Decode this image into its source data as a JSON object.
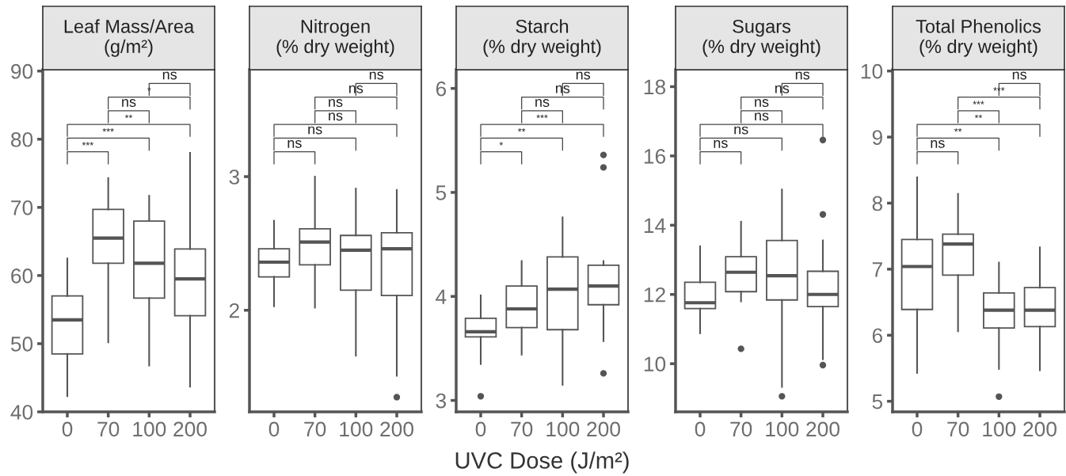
{
  "chart_data": [
    {
      "type": "box",
      "title": "Leaf Mass/Area\n(g/m²)",
      "categories": [
        "0",
        "70",
        "100",
        "200"
      ],
      "ylim": [
        40,
        90.2
      ],
      "yticks": [
        40,
        50,
        60,
        70,
        80,
        90
      ],
      "boxes": [
        {
          "low": 42.3,
          "q1": 48.5,
          "median": 53.5,
          "q3": 57,
          "high": 62.5
        },
        {
          "low": 50.2,
          "q1": 61.8,
          "median": 65.5,
          "q3": 69.7,
          "high": 74.3
        },
        {
          "low": 46.8,
          "q1": 56.7,
          "median": 61.8,
          "q3": 68,
          "high": 71.7
        },
        {
          "low": 43.7,
          "q1": 54.1,
          "median": 59.5,
          "q3": 63.9,
          "high": 78
        }
      ],
      "annotations": [
        "***",
        "***",
        "**",
        "ns",
        "*",
        "ns"
      ]
    },
    {
      "type": "box",
      "title": "Nitrogen\n(% dry weight)",
      "categories": [
        "0",
        "70",
        "100",
        "200"
      ],
      "ylim": [
        1.24,
        3.8
      ],
      "yticks": [
        2,
        3
      ],
      "boxes": [
        {
          "low": 2.03,
          "q1": 2.25,
          "median": 2.36,
          "q3": 2.46,
          "high": 2.67
        },
        {
          "low": 2.02,
          "q1": 2.34,
          "median": 2.51,
          "q3": 2.61,
          "high": 3.0
        },
        {
          "low": 1.66,
          "q1": 2.15,
          "median": 2.45,
          "q3": 2.56,
          "high": 2.91
        },
        {
          "low": 1.51,
          "q1": 2.11,
          "median": 2.46,
          "q3": 2.58,
          "high": 2.9,
          "outliers": [
            1.35
          ]
        }
      ],
      "annotations": [
        "ns",
        "ns",
        "ns",
        "ns",
        "ns",
        "ns"
      ]
    },
    {
      "type": "box",
      "title": "Starch\n(% dry weight)",
      "xlabel": "UVC Dose (J/m²)",
      "categories": [
        "0",
        "70",
        "100",
        "200"
      ],
      "ylim": [
        2.89,
        6.18
      ],
      "yticks": [
        3,
        4,
        5,
        6
      ],
      "boxes": [
        {
          "low": 3.35,
          "q1": 3.61,
          "median": 3.66,
          "q3": 3.79,
          "high": 4.01,
          "outliers": [
            3.04
          ]
        },
        {
          "low": 3.44,
          "q1": 3.7,
          "median": 3.88,
          "q3": 4.1,
          "high": 4.34
        },
        {
          "low": 3.15,
          "q1": 3.68,
          "median": 4.07,
          "q3": 4.38,
          "high": 4.76
        },
        {
          "low": 3.57,
          "q1": 3.92,
          "median": 4.1,
          "q3": 4.3,
          "high": 4.34,
          "outliers": [
            5.36,
            5.24,
            3.26
          ]
        }
      ],
      "annotations": [
        "*",
        "**",
        "***",
        "ns",
        "ns",
        "ns"
      ]
    },
    {
      "type": "box",
      "title": "Sugars\n(% dry weight)",
      "categories": [
        "0",
        "70",
        "100",
        "200"
      ],
      "ylim": [
        8.61,
        18.49
      ],
      "yticks": [
        10,
        12,
        14,
        16,
        18
      ],
      "boxes": [
        {
          "low": 10.88,
          "q1": 11.59,
          "median": 11.76,
          "q3": 12.35,
          "high": 13.39
        },
        {
          "low": 11.8,
          "q1": 12.08,
          "median": 12.64,
          "q3": 13.09,
          "high": 14.1,
          "outliers": [
            10.43
          ]
        },
        {
          "low": 9.33,
          "q1": 11.84,
          "median": 12.54,
          "q3": 13.56,
          "high": 15.03,
          "outliers": [
            9.06
          ]
        },
        {
          "low": 10.13,
          "q1": 11.65,
          "median": 12.0,
          "q3": 12.67,
          "high": 13.56,
          "outliers": [
            16.46,
            14.31,
            9.96
          ]
        }
      ],
      "annotations": [
        "ns",
        "ns",
        "ns",
        "ns",
        "ns",
        "ns"
      ]
    },
    {
      "type": "box",
      "title": "Total Phenolics\n(% dry weight)",
      "categories": [
        "0",
        "70",
        "100",
        "200"
      ],
      "ylim": [
        4.84,
        10.02
      ],
      "yticks": [
        5,
        6,
        7,
        8,
        9,
        10
      ],
      "boxes": [
        {
          "low": 5.43,
          "q1": 6.39,
          "median": 7.04,
          "q3": 7.45,
          "high": 8.39
        },
        {
          "low": 6.06,
          "q1": 6.91,
          "median": 7.38,
          "q3": 7.53,
          "high": 8.14
        },
        {
          "low": 5.49,
          "q1": 6.11,
          "median": 6.38,
          "q3": 6.64,
          "high": 7.1,
          "outliers": [
            5.07
          ]
        },
        {
          "low": 5.47,
          "q1": 6.13,
          "median": 6.38,
          "q3": 6.72,
          "high": 7.33
        }
      ],
      "annotations": [
        "ns",
        "**",
        "**",
        "***",
        "***",
        "ns"
      ]
    }
  ]
}
